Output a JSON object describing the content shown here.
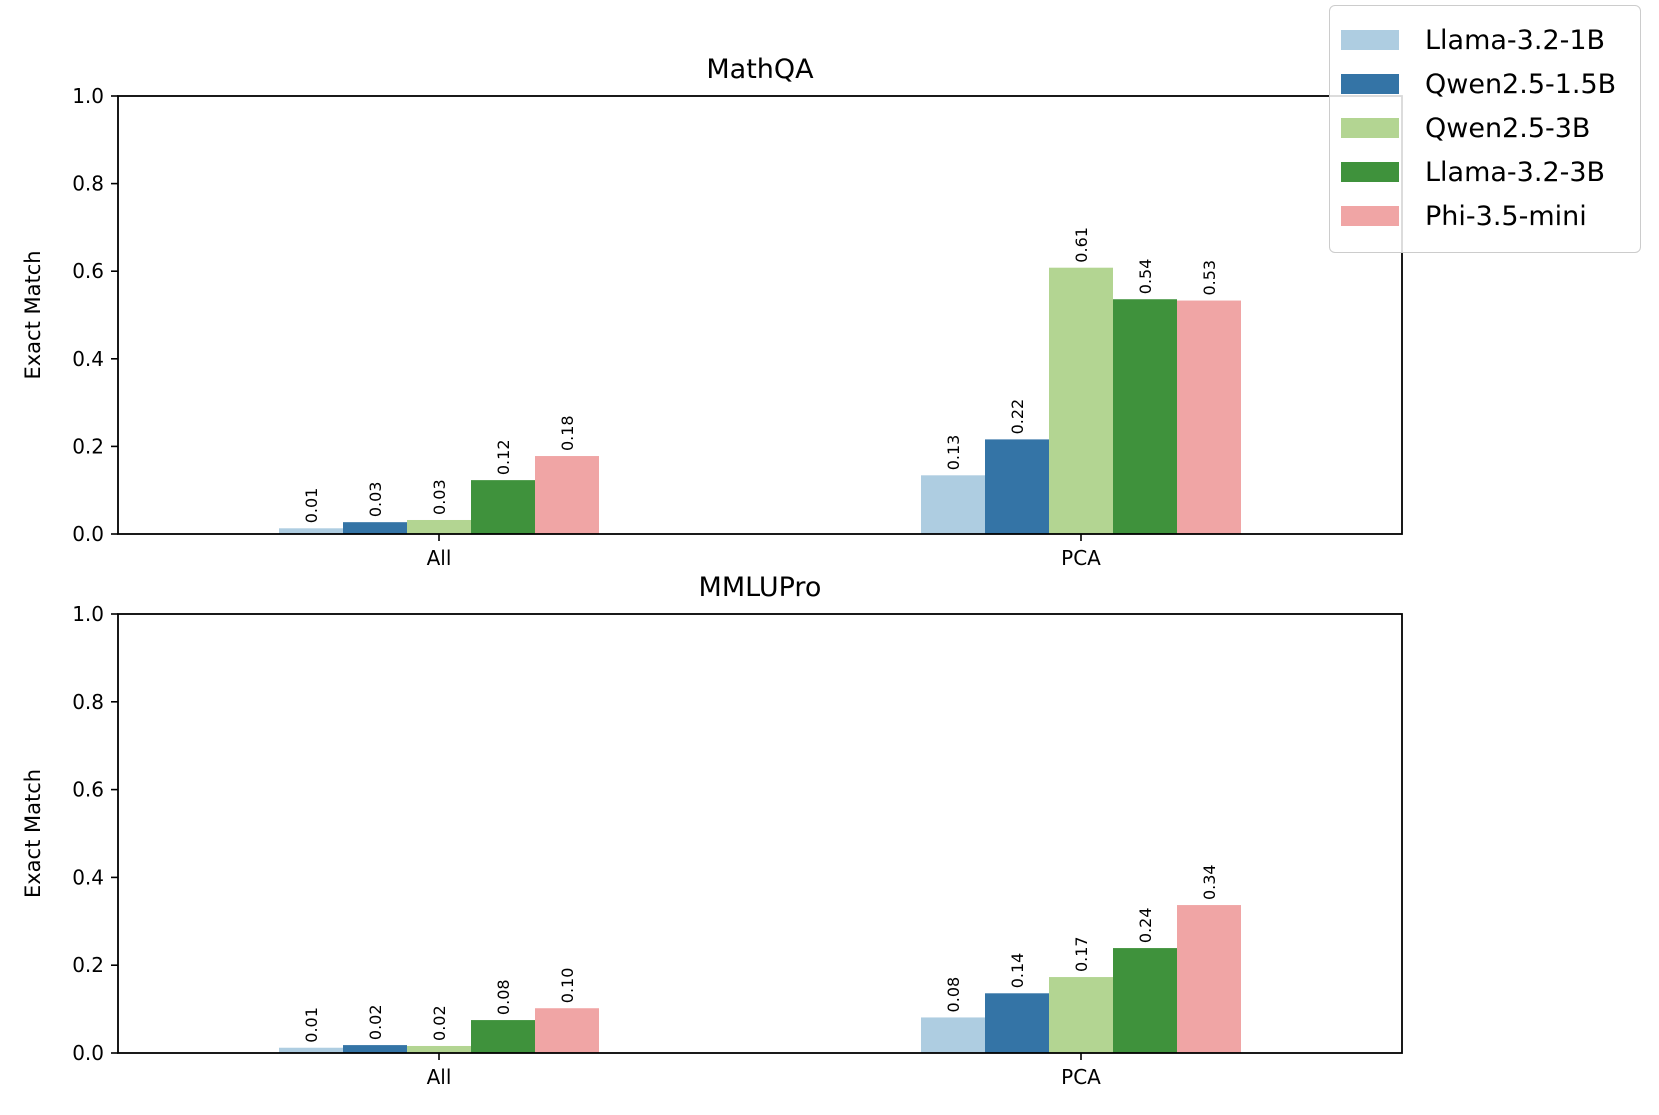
{
  "chart_data": [
    {
      "type": "bar",
      "title": "MathQA",
      "ylabel": "Exact Match",
      "xlabel": "",
      "ylim": [
        0,
        1.0
      ],
      "yticks": [
        "0.0",
        "0.2",
        "0.4",
        "0.6",
        "0.8",
        "1.0"
      ],
      "categories": [
        "All",
        "PCA"
      ],
      "series": [
        {
          "name": "Llama-3.2-1B",
          "values": [
            0.013,
            0.134
          ],
          "labels": [
            "0.01",
            "0.13"
          ]
        },
        {
          "name": "Qwen2.5-1.5B",
          "values": [
            0.027,
            0.216
          ],
          "labels": [
            "0.03",
            "0.22"
          ]
        },
        {
          "name": "Qwen2.5-3B",
          "values": [
            0.032,
            0.608
          ],
          "labels": [
            "0.03",
            "0.61"
          ]
        },
        {
          "name": "Llama-3.2-3B",
          "values": [
            0.123,
            0.536
          ],
          "labels": [
            "0.12",
            "0.54"
          ]
        },
        {
          "name": "Phi-3.5-mini",
          "values": [
            0.178,
            0.533
          ],
          "labels": [
            "0.18",
            "0.53"
          ]
        }
      ]
    },
    {
      "type": "bar",
      "title": "MMLUPro",
      "ylabel": "Exact Match",
      "xlabel": "",
      "ylim": [
        0,
        1.0
      ],
      "yticks": [
        "0.0",
        "0.2",
        "0.4",
        "0.6",
        "0.8",
        "1.0"
      ],
      "categories": [
        "All",
        "PCA"
      ],
      "series": [
        {
          "name": "Llama-3.2-1B",
          "values": [
            0.012,
            0.081
          ],
          "labels": [
            "0.01",
            "0.08"
          ]
        },
        {
          "name": "Qwen2.5-1.5B",
          "values": [
            0.018,
            0.136
          ],
          "labels": [
            "0.02",
            "0.14"
          ]
        },
        {
          "name": "Qwen2.5-3B",
          "values": [
            0.016,
            0.173
          ],
          "labels": [
            "0.02",
            "0.17"
          ]
        },
        {
          "name": "Llama-3.2-3B",
          "values": [
            0.075,
            0.239
          ],
          "labels": [
            "0.08",
            "0.24"
          ]
        },
        {
          "name": "Phi-3.5-mini",
          "values": [
            0.102,
            0.337
          ],
          "labels": [
            "0.10",
            "0.34"
          ]
        }
      ]
    }
  ],
  "legend": {
    "items": [
      {
        "label": "Llama-3.2-1B",
        "color": "#aecde1"
      },
      {
        "label": "Qwen2.5-1.5B",
        "color": "#3474a6"
      },
      {
        "label": "Qwen2.5-3B",
        "color": "#b3d592"
      },
      {
        "label": "Llama-3.2-3B",
        "color": "#3f923c"
      },
      {
        "label": "Phi-3.5-mini",
        "color": "#f0a5a5"
      }
    ]
  }
}
